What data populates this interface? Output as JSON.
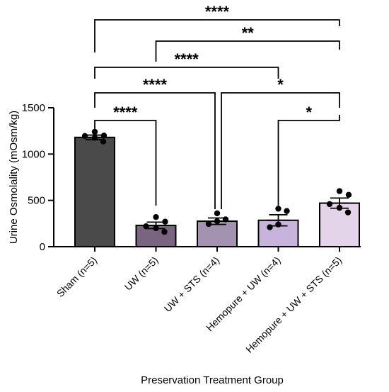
{
  "chart_data": {
    "type": "bar",
    "xlabel": "Preservation Treatment Group",
    "ylabel": "Urine Osmolality (mOsm/kg)",
    "ylim": [
      0,
      1500
    ],
    "yticks": [
      "0",
      "500",
      "1000",
      "1500"
    ],
    "categories": [
      "Sham (n=5)",
      "UW (n=5)",
      "UW + STS (n=4)",
      "Hemopure + UW (n=4)",
      "Hemopure + UW + STS (n=5)"
    ],
    "values": [
      1180,
      230,
      275,
      285,
      470
    ],
    "errors": [
      25,
      35,
      35,
      60,
      55
    ],
    "bar_colors": [
      "#4a4a4a",
      "#7a6580",
      "#a393b0",
      "#c7b3dc",
      "#e4d4ea"
    ],
    "points": [
      [
        1240,
        1200,
        1195,
        1175,
        1135
      ],
      [
        320,
        270,
        220,
        200,
        160
      ],
      [
        360,
        295,
        275,
        245
      ],
      [
        410,
        385,
        240,
        210
      ],
      [
        600,
        560,
        460,
        420,
        370
      ]
    ],
    "comparisons": [
      {
        "from": 0,
        "to": 4,
        "label": "****"
      },
      {
        "from": 1,
        "to": 4,
        "label": "**"
      },
      {
        "from": 0,
        "to": 3,
        "label": "****"
      },
      {
        "from": 0,
        "to": 2,
        "label": "****"
      },
      {
        "from": 2,
        "to": 4,
        "label": "*"
      },
      {
        "from": 0,
        "to": 1,
        "label": "****"
      },
      {
        "from": 3,
        "to": 4,
        "label": "*"
      }
    ]
  }
}
